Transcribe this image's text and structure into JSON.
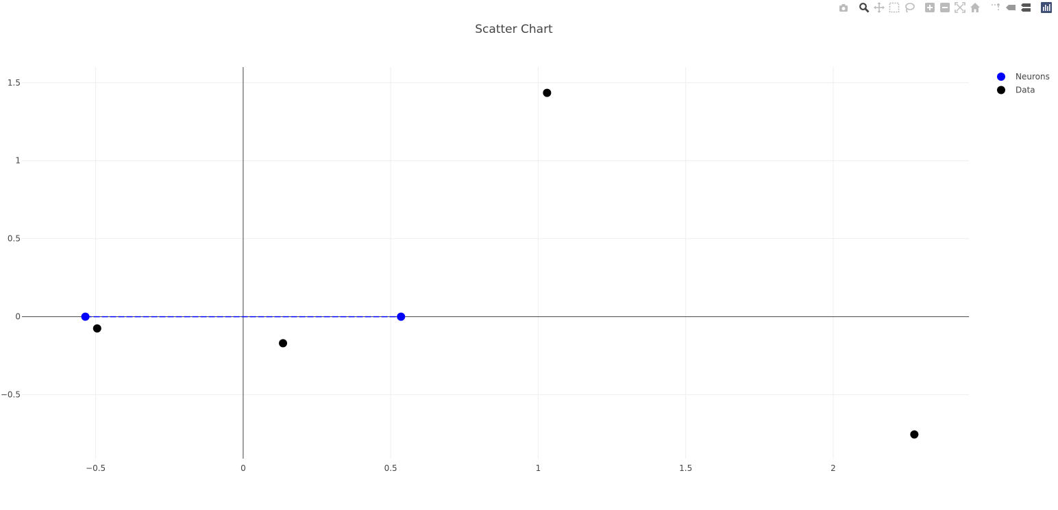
{
  "modebar": {
    "buttons": [
      {
        "icon": "camera-icon",
        "group": 0
      },
      {
        "icon": "zoom-icon",
        "group": 1
      },
      {
        "icon": "pan-icon",
        "group": 1
      },
      {
        "icon": "box-select-icon",
        "group": 1
      },
      {
        "icon": "lasso-select-icon",
        "group": 1
      },
      {
        "icon": "zoom-in-icon",
        "group": 2
      },
      {
        "icon": "zoom-out-icon",
        "group": 2
      },
      {
        "icon": "autoscale-icon",
        "group": 2
      },
      {
        "icon": "reset-axes-icon",
        "group": 2
      },
      {
        "icon": "spike-lines-icon",
        "group": 3
      },
      {
        "icon": "hover-closest-icon",
        "group": 3
      },
      {
        "icon": "hover-compare-icon",
        "group": 3
      },
      {
        "icon": "plotly-logo-icon",
        "group": 4
      }
    ],
    "active_color": "#444444",
    "inactive_color": "#bbbbbb",
    "logo_color": "#3f4f75"
  },
  "chart_data": {
    "type": "scatter",
    "title": "Scatter Chart",
    "xlabel": "",
    "ylabel": "",
    "xlim": [
      -0.75,
      2.46
    ],
    "ylim": [
      -0.91,
      1.6
    ],
    "x_ticks": [
      -0.5,
      0,
      0.5,
      1,
      1.5,
      2
    ],
    "x_tick_labels": [
      "−0.5",
      "0",
      "0.5",
      "1",
      "1.5",
      "2"
    ],
    "y_ticks": [
      -0.5,
      0,
      0.5,
      1,
      1.5
    ],
    "y_tick_labels": [
      "−0.5",
      "0",
      "0.5",
      "1",
      "1.5"
    ],
    "grid": true,
    "zero_lines": true,
    "legend_position": "top-right",
    "series": [
      {
        "name": "Neurons",
        "color": "#0000ff",
        "mode": "markers+lines",
        "line_style": "dashed",
        "x": [
          -0.535,
          0.535
        ],
        "y": [
          0,
          0
        ]
      },
      {
        "name": "Data",
        "color": "#000000",
        "mode": "markers",
        "x": [
          -0.495,
          0.135,
          1.03,
          2.275
        ],
        "y": [
          -0.075,
          -0.17,
          1.435,
          -0.755
        ]
      }
    ]
  }
}
